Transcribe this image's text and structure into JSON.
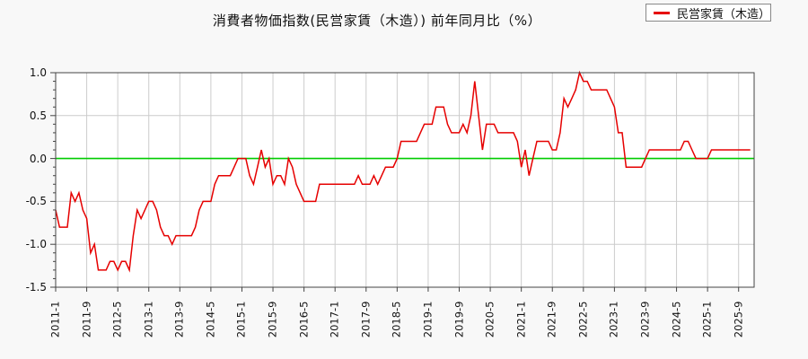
{
  "title": "消費者物価指数(民営家賃（木造）) 前年同月比（%）",
  "legend": {
    "label": "民営家賃（木造）",
    "color": "#e60000"
  },
  "colors": {
    "series": "#e60000",
    "zero_line": "#00cc00",
    "grid": "#cccccc",
    "frame": "#444444",
    "plot_bg": "#ffffff",
    "page_bg": "#f8f8f8"
  },
  "chart_data": {
    "type": "line",
    "title": "消費者物価指数(民営家賃（木造）) 前年同月比（%）",
    "series_name": "民営家賃（木造）",
    "x_unit": "year-month",
    "x_range": [
      "2011-1",
      "2025-12"
    ],
    "x_tick_step_months": 8,
    "x_tick_labels": [
      "2011-1",
      "2011-9",
      "2012-5",
      "2013-1",
      "2013-9",
      "2014-5",
      "2015-1",
      "2015-9",
      "2016-5",
      "2017-1",
      "2017-9",
      "2018-5",
      "2019-1",
      "2019-9",
      "2020-5",
      "2021-1",
      "2021-9",
      "2022-5",
      "2023-1",
      "2023-9",
      "2024-5",
      "2025-1",
      "2025-9"
    ],
    "ylim": [
      -1.5,
      1.0
    ],
    "y_ticks": [
      "1.0",
      "0.5",
      "0.0",
      "-0.5",
      "-1.0",
      "-1.5"
    ],
    "y_minor_step": 0.1,
    "grid": true,
    "zero_line": true,
    "legend_position": "top-right",
    "values_by_year": {
      "2011": [
        -0.6,
        -0.8,
        -0.8,
        -0.8,
        -0.4,
        -0.5,
        -0.4,
        -0.6,
        -0.7,
        -1.1,
        -1.0,
        -1.3
      ],
      "2012": [
        -1.3,
        -1.3,
        -1.2,
        -1.2,
        -1.3,
        -1.2,
        -1.2,
        -1.3,
        -0.9,
        -0.6,
        -0.7,
        -0.6
      ],
      "2013": [
        -0.5,
        -0.5,
        -0.6,
        -0.8,
        -0.9,
        -0.9,
        -1.0,
        -0.9,
        -0.9,
        -0.9,
        -0.9,
        -0.9
      ],
      "2014": [
        -0.8,
        -0.6,
        -0.5,
        -0.5,
        -0.5,
        -0.3,
        -0.2,
        -0.2,
        -0.2,
        -0.2,
        -0.1,
        0.0
      ],
      "2015": [
        0.0,
        0.0,
        -0.2,
        -0.3,
        -0.1,
        0.1,
        -0.1,
        0.0,
        -0.3,
        -0.2,
        -0.2,
        -0.3
      ],
      "2016": [
        0.0,
        -0.1,
        -0.3,
        -0.4,
        -0.5,
        -0.5,
        -0.5,
        -0.5,
        -0.3,
        -0.3,
        -0.3,
        -0.3
      ],
      "2017": [
        -0.3,
        -0.3,
        -0.3,
        -0.3,
        -0.3,
        -0.3,
        -0.2,
        -0.3,
        -0.3,
        -0.3,
        -0.2,
        -0.3
      ],
      "2018": [
        -0.2,
        -0.1,
        -0.1,
        -0.1,
        0.0,
        0.2,
        0.2,
        0.2,
        0.2,
        0.2,
        0.3,
        0.4
      ],
      "2019": [
        0.4,
        0.4,
        0.6,
        0.6,
        0.6,
        0.4,
        0.3,
        0.3,
        0.3,
        0.4,
        0.3,
        0.5
      ],
      "2020": [
        0.9,
        0.5,
        0.1,
        0.4,
        0.4,
        0.4,
        0.3,
        0.3,
        0.3,
        0.3,
        0.3,
        0.2
      ],
      "2021": [
        -0.1,
        0.1,
        -0.2,
        0.0,
        0.2,
        0.2,
        0.2,
        0.2,
        0.1,
        0.1,
        0.3,
        0.7
      ],
      "2022": [
        0.6,
        0.7,
        0.8,
        1.0,
        0.9,
        0.9,
        0.8,
        0.8,
        0.8,
        0.8,
        0.8,
        0.7
      ],
      "2023": [
        0.6,
        0.3,
        0.3,
        -0.1,
        -0.1,
        -0.1,
        -0.1,
        -0.1,
        0.0,
        0.1,
        0.1,
        0.1
      ],
      "2024": [
        0.1,
        0.1,
        0.1,
        0.1,
        0.1,
        0.1,
        0.2,
        0.2,
        0.1,
        0.0,
        0.0,
        0.0
      ],
      "2025": [
        0.0,
        0.1,
        0.1,
        0.1,
        0.1,
        0.1,
        0.1,
        0.1,
        0.1,
        0.1,
        0.1,
        0.1
      ]
    }
  }
}
